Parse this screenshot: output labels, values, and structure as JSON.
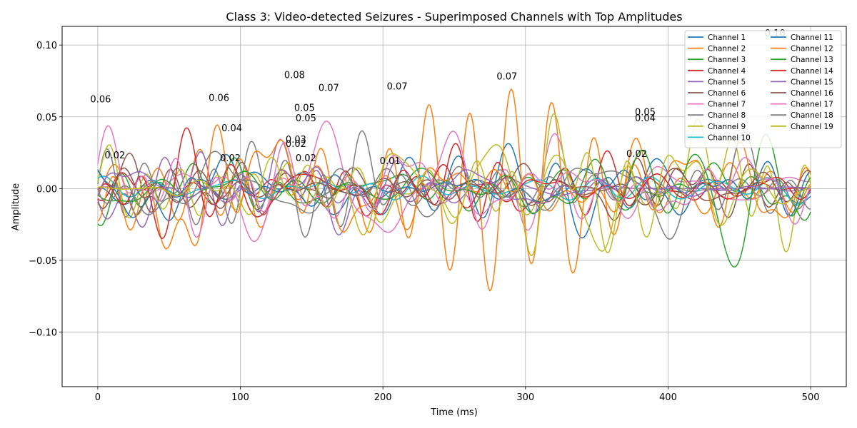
{
  "chart_data": {
    "type": "line",
    "title": "Class 3: Video-detected Seizures - Superimposed Channels with Top Amplitudes",
    "xlabel": "Time (ms)",
    "ylabel": "Amplitude",
    "xlim": [
      -25,
      525
    ],
    "ylim": [
      -0.138,
      0.113
    ],
    "xticks": [
      0,
      100,
      200,
      300,
      400,
      500
    ],
    "xtick_labels": [
      "0",
      "100",
      "200",
      "300",
      "400",
      "500"
    ],
    "yticks": [
      -0.1,
      -0.05,
      0.0,
      0.05,
      0.1
    ],
    "ytick_labels": [
      "−0.10",
      "−0.05",
      "0.00",
      "0.05",
      "0.10"
    ],
    "grid": true,
    "legend_position": "top-right",
    "legend_columns": 2,
    "n_points": 501,
    "series": [
      {
        "name": "Channel 1",
        "color": "#1f77b4",
        "amplitude": 0.03,
        "seed": 11
      },
      {
        "name": "Channel 2",
        "color": "#ff7f0e",
        "amplitude": 0.052,
        "seed": 23
      },
      {
        "name": "Channel 3",
        "color": "#2ca02c",
        "amplitude": 0.045,
        "seed": 37
      },
      {
        "name": "Channel 4",
        "color": "#d62728",
        "amplitude": 0.04,
        "seed": 41
      },
      {
        "name": "Channel 5",
        "color": "#9467bd",
        "amplitude": 0.02,
        "seed": 53
      },
      {
        "name": "Channel 6",
        "color": "#8c564b",
        "amplitude": 0.03,
        "seed": 67
      },
      {
        "name": "Channel 7",
        "color": "#e377c2",
        "amplitude": 0.045,
        "seed": 71
      },
      {
        "name": "Channel 8",
        "color": "#7f7f7f",
        "amplitude": 0.04,
        "seed": 83
      },
      {
        "name": "Channel 9",
        "color": "#bcbd22",
        "amplitude": 0.05,
        "seed": 97
      },
      {
        "name": "Channel 10",
        "color": "#17becf",
        "amplitude": 0.012,
        "seed": 101
      },
      {
        "name": "Channel 11",
        "color": "#1f77b4",
        "amplitude": 0.025,
        "seed": 113
      },
      {
        "name": "Channel 12",
        "color": "#ff7f0e",
        "amplitude": 0.045,
        "seed": 127
      },
      {
        "name": "Channel 13",
        "color": "#2ca02c",
        "amplitude": 0.04,
        "seed": 131
      },
      {
        "name": "Channel 14",
        "color": "#d62728",
        "amplitude": 0.035,
        "seed": 149
      },
      {
        "name": "Channel 15",
        "color": "#9467bd",
        "amplitude": 0.02,
        "seed": 157
      },
      {
        "name": "Channel 16",
        "color": "#8c564b",
        "amplitude": 0.025,
        "seed": 163
      },
      {
        "name": "Channel 17",
        "color": "#e377c2",
        "amplitude": 0.035,
        "seed": 173
      },
      {
        "name": "Channel 18",
        "color": "#7f7f7f",
        "amplitude": 0.04,
        "seed": 181
      },
      {
        "name": "Channel 19",
        "color": "#bcbd22",
        "amplitude": 0.045,
        "seed": 191
      }
    ],
    "annotations": [
      {
        "text": "0.06",
        "x": 2,
        "y": 0.06
      },
      {
        "text": "0.02",
        "x": 12,
        "y": 0.021
      },
      {
        "text": "0.06",
        "x": 85,
        "y": 0.061
      },
      {
        "text": "0.04",
        "x": 94,
        "y": 0.04
      },
      {
        "text": "0.02",
        "x": 93,
        "y": 0.019
      },
      {
        "text": "0.08",
        "x": 138,
        "y": 0.077
      },
      {
        "text": "0.07",
        "x": 162,
        "y": 0.068
      },
      {
        "text": "0.05",
        "x": 145,
        "y": 0.054
      },
      {
        "text": "0.05",
        "x": 146,
        "y": 0.047
      },
      {
        "text": "0.03",
        "x": 139,
        "y": 0.032
      },
      {
        "text": "0.02",
        "x": 139,
        "y": 0.029
      },
      {
        "text": "0.02",
        "x": 146,
        "y": 0.019
      },
      {
        "text": "0.07",
        "x": 210,
        "y": 0.069
      },
      {
        "text": "0.01",
        "x": 205,
        "y": 0.017
      },
      {
        "text": "0.07",
        "x": 287,
        "y": 0.076
      },
      {
        "text": "0.05",
        "x": 384,
        "y": 0.051
      },
      {
        "text": "0.04",
        "x": 384,
        "y": 0.047
      },
      {
        "text": "0.02",
        "x": 378,
        "y": 0.022
      },
      {
        "text": "0.10",
        "x": 475,
        "y": 0.106
      }
    ]
  }
}
